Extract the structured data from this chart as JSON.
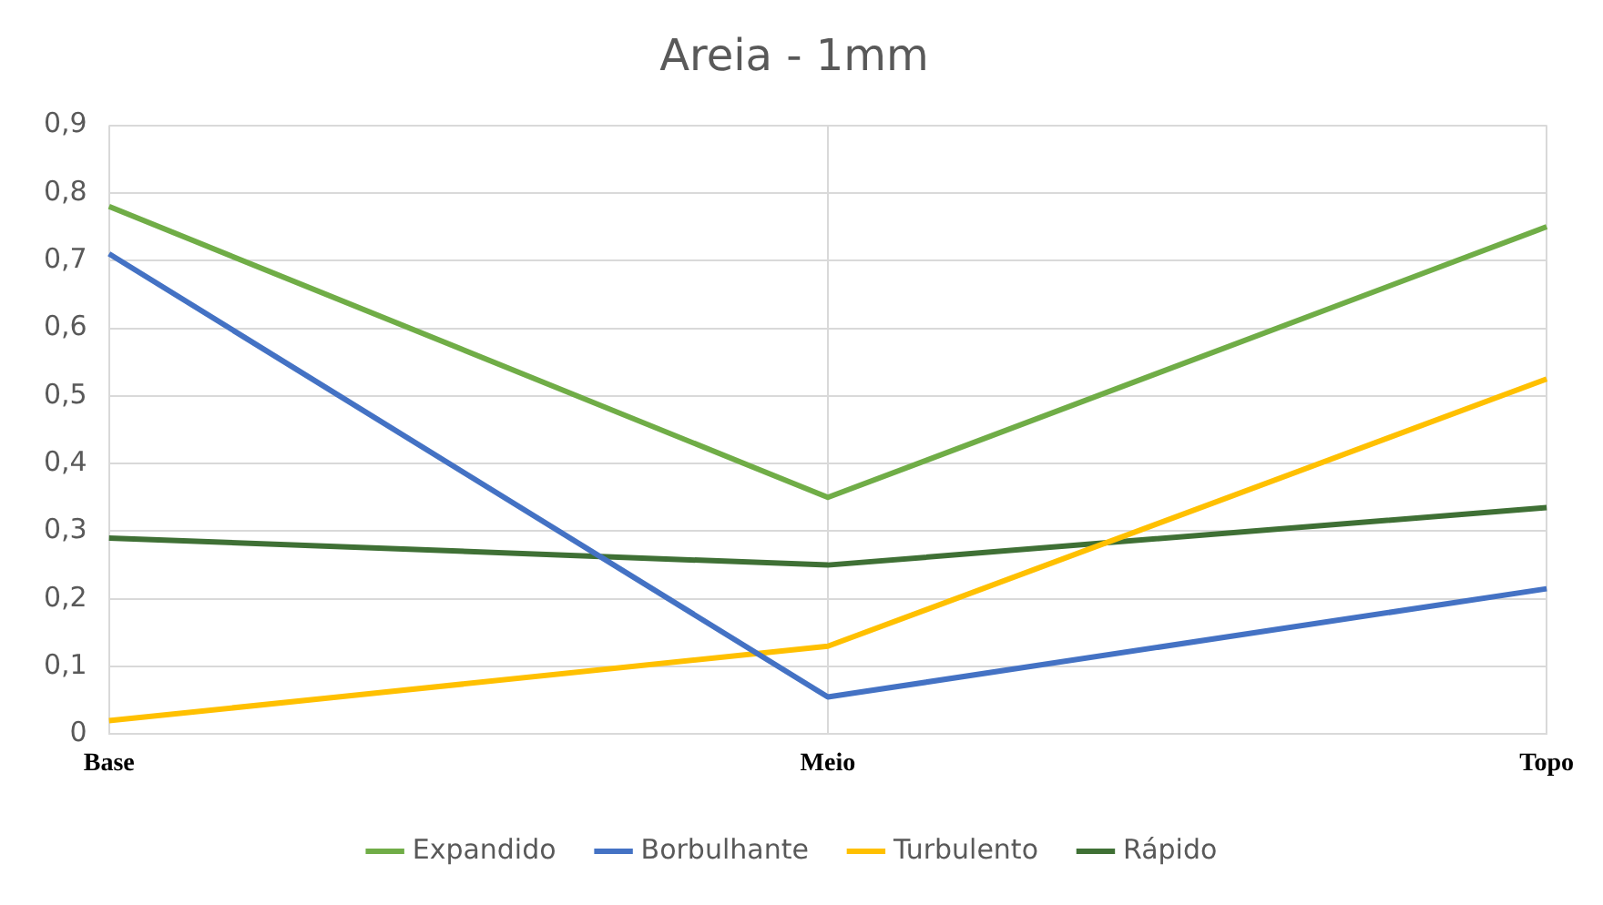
{
  "chart_data": {
    "type": "line",
    "title": "Areia - 1mm",
    "categories": [
      "Base",
      "Meio",
      "Topo"
    ],
    "series": [
      {
        "name": "Expandido",
        "color": "#70ad47",
        "values": [
          0.78,
          0.35,
          0.75
        ]
      },
      {
        "name": "Borbulhante",
        "color": "#4472c4",
        "values": [
          0.71,
          0.055,
          0.215
        ]
      },
      {
        "name": "Turbulento",
        "color": "#ffc000",
        "values": [
          0.02,
          0.13,
          0.525
        ]
      },
      {
        "name": "Rápido",
        "color": "#3f7035",
        "values": [
          0.29,
          0.25,
          0.335
        ]
      }
    ],
    "ylim": [
      0,
      0.9
    ],
    "yticks": [
      0,
      {
        "value": 0.1,
        "label": "0,1"
      },
      {
        "value": 0.2,
        "label": "0,2"
      },
      {
        "value": 0.3,
        "label": "0,3"
      },
      {
        "value": 0.4,
        "label": "0,4"
      },
      {
        "value": 0.5,
        "label": "0,5"
      },
      {
        "value": 0.6,
        "label": "0,6"
      },
      {
        "value": 0.7,
        "label": "0,7"
      },
      {
        "value": 0.8,
        "label": "0,8"
      },
      {
        "value": 0.9,
        "label": "0,9"
      }
    ],
    "grid": true,
    "legend": "bottom"
  }
}
